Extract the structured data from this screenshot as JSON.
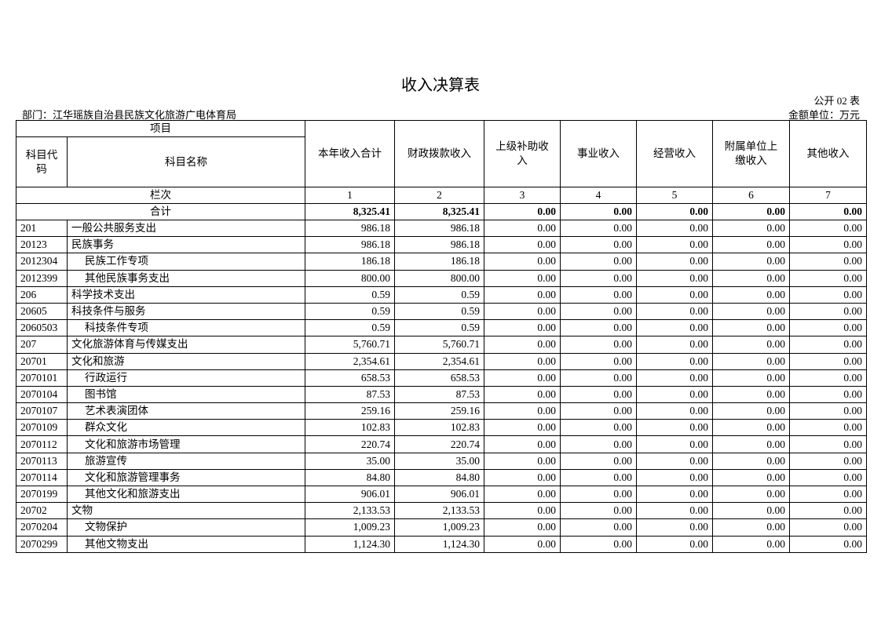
{
  "title": "收入决算表",
  "form_no": "公开 02 表",
  "department": "部门：江华瑶族自治县民族文化旅游广电体育局",
  "unit": "金额单位：万元",
  "header": {
    "project": "项目",
    "code": "科目代码",
    "name": "科目名称",
    "columns": [
      "本年收入合计",
      "财政拨款收入",
      "上级补助收入",
      "事业收入",
      "经营收入",
      "附属单位上缴收入",
      "其他收入"
    ],
    "index_label": "栏次",
    "indices": [
      "1",
      "2",
      "3",
      "4",
      "5",
      "6",
      "7"
    ]
  },
  "total": {
    "label": "合计",
    "values": [
      "8,325.41",
      "8,325.41",
      "0.00",
      "0.00",
      "0.00",
      "0.00",
      "0.00"
    ]
  },
  "rows": [
    {
      "code": "201",
      "name": "一般公共服务支出",
      "indent": false,
      "total": "986.18",
      "fiscal": "986.18"
    },
    {
      "code": "20123",
      "name": "民族事务",
      "indent": false,
      "total": "986.18",
      "fiscal": "986.18"
    },
    {
      "code": "2012304",
      "name": "民族工作专项",
      "indent": true,
      "total": "186.18",
      "fiscal": "186.18"
    },
    {
      "code": "2012399",
      "name": "其他民族事务支出",
      "indent": true,
      "total": "800.00",
      "fiscal": "800.00"
    },
    {
      "code": "206",
      "name": "科学技术支出",
      "indent": false,
      "total": "0.59",
      "fiscal": "0.59"
    },
    {
      "code": "20605",
      "name": "科技条件与服务",
      "indent": false,
      "total": "0.59",
      "fiscal": "0.59"
    },
    {
      "code": "2060503",
      "name": "科技条件专项",
      "indent": true,
      "total": "0.59",
      "fiscal": "0.59"
    },
    {
      "code": "207",
      "name": "文化旅游体育与传媒支出",
      "indent": false,
      "total": "5,760.71",
      "fiscal": "5,760.71"
    },
    {
      "code": "20701",
      "name": "文化和旅游",
      "indent": false,
      "total": "2,354.61",
      "fiscal": "2,354.61"
    },
    {
      "code": "2070101",
      "name": "行政运行",
      "indent": true,
      "total": "658.53",
      "fiscal": "658.53"
    },
    {
      "code": "2070104",
      "name": "图书馆",
      "indent": true,
      "total": "87.53",
      "fiscal": "87.53"
    },
    {
      "code": "2070107",
      "name": "艺术表演团体",
      "indent": true,
      "total": "259.16",
      "fiscal": "259.16"
    },
    {
      "code": "2070109",
      "name": "群众文化",
      "indent": true,
      "total": "102.83",
      "fiscal": "102.83"
    },
    {
      "code": "2070112",
      "name": "文化和旅游市场管理",
      "indent": true,
      "total": "220.74",
      "fiscal": "220.74"
    },
    {
      "code": "2070113",
      "name": "旅游宣传",
      "indent": true,
      "total": "35.00",
      "fiscal": "35.00"
    },
    {
      "code": "2070114",
      "name": "文化和旅游管理事务",
      "indent": true,
      "total": "84.80",
      "fiscal": "84.80"
    },
    {
      "code": "2070199",
      "name": "其他文化和旅游支出",
      "indent": true,
      "total": "906.01",
      "fiscal": "906.01"
    },
    {
      "code": "20702",
      "name": "文物",
      "indent": false,
      "total": "2,133.53",
      "fiscal": "2,133.53"
    },
    {
      "code": "2070204",
      "name": "文物保护",
      "indent": true,
      "total": "1,009.23",
      "fiscal": "1,009.23"
    },
    {
      "code": "2070299",
      "name": "其他文物支出",
      "indent": true,
      "total": "1,124.30",
      "fiscal": "1,124.30"
    }
  ],
  "zero": "0.00"
}
